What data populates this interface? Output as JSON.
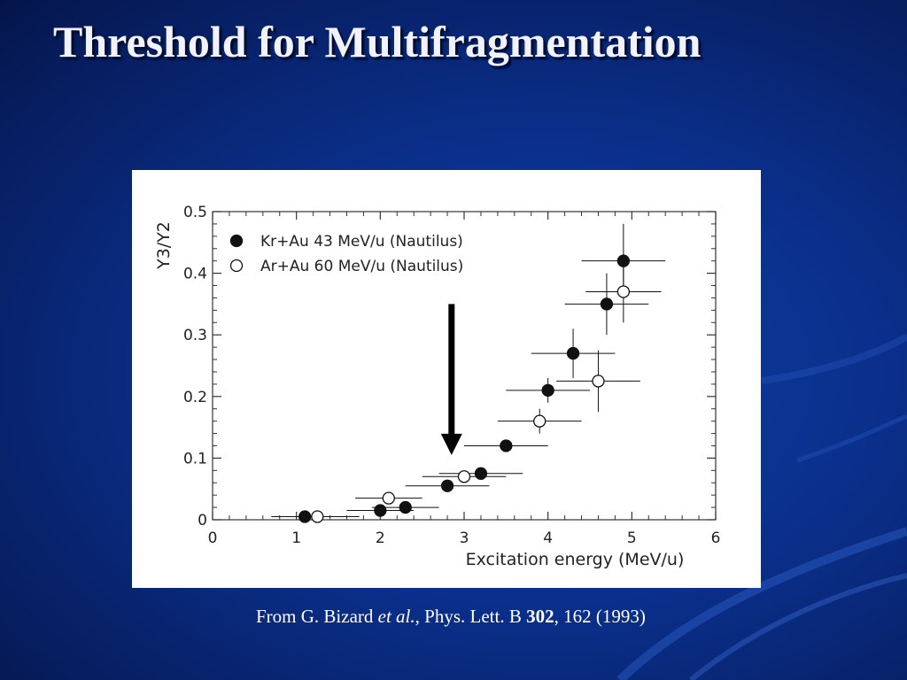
{
  "slide": {
    "title": "Threshold for Multifragmentation",
    "caption": {
      "prefix": "From G. Bizard ",
      "etal": "et al.",
      "journal": ", Phys. Lett. B ",
      "volume": "302",
      "rest": ", 162 (1993)"
    }
  },
  "colors": {
    "background": "#0a2f8a",
    "title": "#f2f2ff",
    "marker": "#111111",
    "arrow": "#000000"
  },
  "chart_data": {
    "type": "scatter",
    "xlabel": "Excitation energy (MeV/u)",
    "ylabel": "Y3/Y2",
    "xlim": [
      0,
      6
    ],
    "ylim": [
      0,
      0.5
    ],
    "xticks": [
      "0",
      "1",
      "2",
      "3",
      "4",
      "5",
      "6"
    ],
    "yticks": [
      "0",
      "0.1",
      "0.2",
      "0.3",
      "0.4",
      "0.5"
    ],
    "legend_position": "top-left",
    "series": [
      {
        "name": "Kr+Au 43 MeV/u (Nautilus)",
        "marker": "filled-circle",
        "points": [
          {
            "x": 1.1,
            "y": 0.005,
            "xerr": 0.4,
            "yerr": 0.003
          },
          {
            "x": 2.0,
            "y": 0.015,
            "xerr": 0.4,
            "yerr": 0.005
          },
          {
            "x": 2.3,
            "y": 0.02,
            "xerr": 0.4,
            "yerr": 0.005
          },
          {
            "x": 2.8,
            "y": 0.055,
            "xerr": 0.5,
            "yerr": 0.008
          },
          {
            "x": 3.2,
            "y": 0.075,
            "xerr": 0.5,
            "yerr": 0.01
          },
          {
            "x": 3.5,
            "y": 0.12,
            "xerr": 0.5,
            "yerr": 0.01
          },
          {
            "x": 4.0,
            "y": 0.21,
            "xerr": 0.5,
            "yerr": 0.02
          },
          {
            "x": 4.3,
            "y": 0.27,
            "xerr": 0.5,
            "yerr": 0.04
          },
          {
            "x": 4.7,
            "y": 0.35,
            "xerr": 0.5,
            "yerr": 0.05
          },
          {
            "x": 4.9,
            "y": 0.42,
            "xerr": 0.5,
            "yerr": 0.06
          }
        ]
      },
      {
        "name": "Ar+Au 60 MeV/u (Nautilus)",
        "marker": "open-circle",
        "points": [
          {
            "x": 1.25,
            "y": 0.005,
            "xerr": 0.5,
            "yerr": 0.003
          },
          {
            "x": 2.1,
            "y": 0.035,
            "xerr": 0.4,
            "yerr": 0.005
          },
          {
            "x": 3.0,
            "y": 0.07,
            "xerr": 0.5,
            "yerr": 0.01
          },
          {
            "x": 3.9,
            "y": 0.16,
            "xerr": 0.5,
            "yerr": 0.02
          },
          {
            "x": 4.6,
            "y": 0.225,
            "xerr": 0.5,
            "yerr": 0.05
          },
          {
            "x": 4.9,
            "y": 0.37,
            "xerr": 0.45,
            "yerr": 0.05
          }
        ]
      }
    ],
    "annotation": {
      "type": "arrow-down",
      "x": 2.85,
      "y_from": 0.35,
      "y_to": 0.105
    }
  }
}
